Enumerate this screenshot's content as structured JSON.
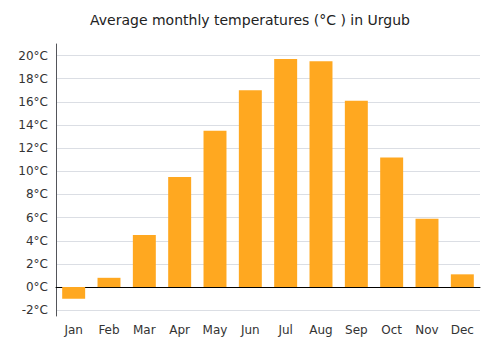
{
  "chart_data": {
    "type": "bar",
    "title": "Average monthly temperatures (°C ) in Urgub",
    "categories": [
      "Jan",
      "Feb",
      "Mar",
      "Apr",
      "May",
      "Jun",
      "Jul",
      "Aug",
      "Sep",
      "Oct",
      "Nov",
      "Dec"
    ],
    "values": [
      -1.0,
      0.8,
      4.5,
      9.5,
      13.5,
      17.0,
      19.7,
      19.5,
      16.1,
      11.2,
      5.9,
      1.1
    ],
    "color": "#FFA820",
    "ylim": [
      -2.5,
      21
    ],
    "yticks": [
      {
        "value": -2,
        "label": "-2°C"
      },
      {
        "value": 0,
        "label": "0°C"
      },
      {
        "value": 2,
        "label": "2°C"
      },
      {
        "value": 4,
        "label": "4°C"
      },
      {
        "value": 6,
        "label": "6°C"
      },
      {
        "value": 8,
        "label": "8°C"
      },
      {
        "value": 10,
        "label": "10°C"
      },
      {
        "value": 12,
        "label": "12°C"
      },
      {
        "value": 14,
        "label": "14°C"
      },
      {
        "value": 16,
        "label": "16°C"
      },
      {
        "value": 18,
        "label": "18°C"
      },
      {
        "value": 20,
        "label": "20°C"
      }
    ],
    "grid": true
  }
}
